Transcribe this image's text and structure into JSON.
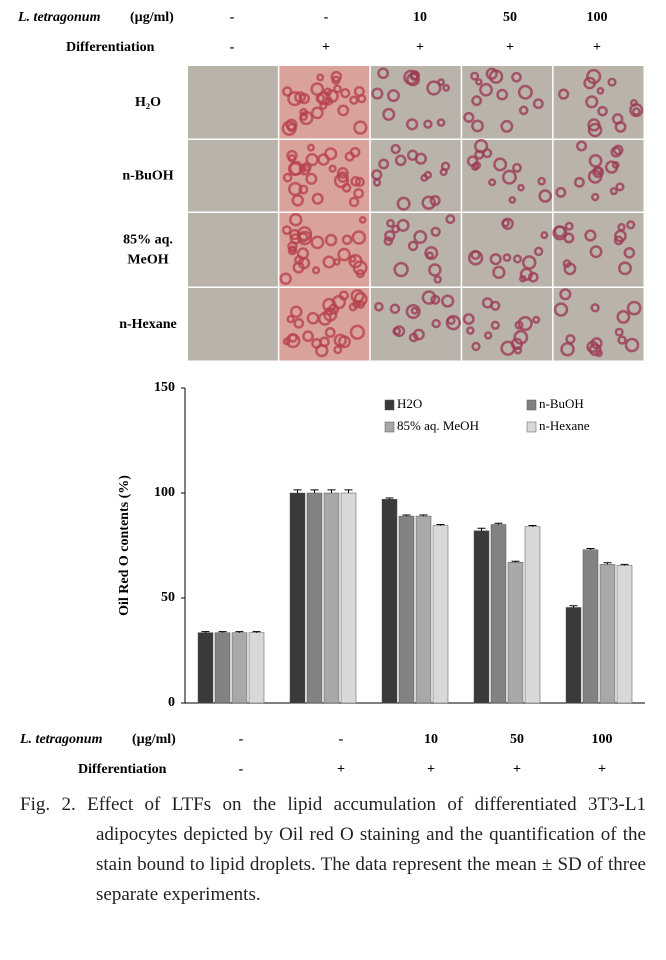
{
  "figure": {
    "header": {
      "species": "L.  tetragonum",
      "unit": "(µg/ml)",
      "doses": [
        "-",
        "-",
        "10",
        "50",
        "100"
      ],
      "differentiation_label": "Differentiation",
      "differentiation": [
        "-",
        "+",
        "+",
        "+",
        "+"
      ]
    },
    "panel_rows": [
      [
        "H₂O"
      ],
      [
        "n-BuOH"
      ],
      [
        "85% aq.",
        "MeOH"
      ],
      [
        "n-Hexane"
      ]
    ]
  },
  "chart_data": {
    "type": "bar",
    "ylabel": "Oil Red O contents (%)",
    "categories": [
      null,
      null,
      null,
      null,
      null
    ],
    "series": [
      {
        "name": "H2O",
        "color": "#3a3a3a",
        "values": [
          33.5,
          100,
          97,
          82,
          45.5
        ],
        "errors": [
          0.5,
          1.5,
          0.6,
          1.2,
          0.8
        ]
      },
      {
        "name": "n-BuOH",
        "color": "#828282",
        "values": [
          33.5,
          100,
          89,
          85,
          73
        ],
        "errors": [
          0.5,
          1.5,
          0.5,
          0.6,
          0.6
        ]
      },
      {
        "name": "85% aq. MeOH",
        "color": "#a8a8a8",
        "values": [
          33.5,
          100,
          89,
          67,
          66
        ],
        "errors": [
          0.5,
          1.5,
          0.5,
          0.5,
          0.8
        ]
      },
      {
        "name": "n-Hexane",
        "color": "#d8d8d8",
        "values": [
          33.5,
          100,
          84.5,
          84,
          65.5
        ],
        "errors": [
          0.5,
          1.5,
          0.5,
          0.5,
          0.5
        ]
      }
    ],
    "ylim": [
      0,
      150
    ],
    "yticks": [
      0,
      50,
      100,
      150
    ],
    "legend": "upper right",
    "treatment_table": {
      "species": "L.  tetragonum",
      "unit": "(µg/ml)",
      "doses": [
        "-",
        "-",
        "10",
        "50",
        "100"
      ],
      "differentiation_label": "Differentiation",
      "differentiation": [
        "-",
        "+",
        "+",
        "+",
        "+"
      ]
    }
  },
  "caption": "Fig. 2. Effect of LTFs on the lipid accumulation of differentiated 3T3-L1 adipocytes depicted by Oil red O staining and the quantification of the stain bound to lipid droplets. The data represent the mean ± SD of three separate experiments."
}
